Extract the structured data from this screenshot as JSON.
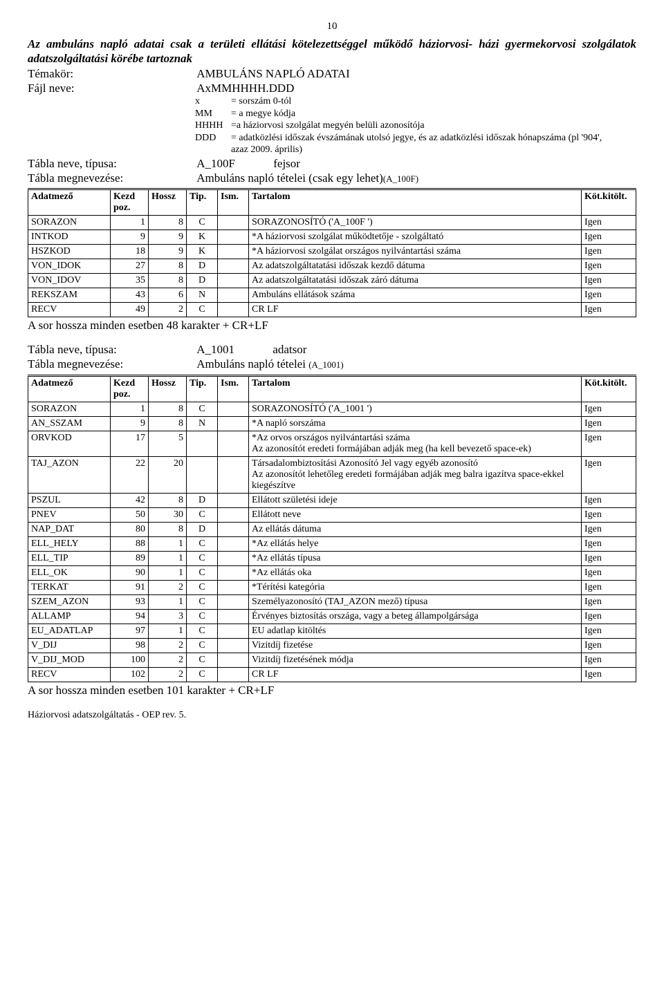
{
  "page_number": "10",
  "intro_heading": "Az ambuláns napló adatai csak a területi ellátási kötelezettséggel működő háziorvosi- házi gyermekorvosi szolgálatok adatszolgáltatási körébe tartoznak",
  "topic_label": "Témakör:",
  "topic_value": "AMBULÁNS NAPLÓ ADATAI",
  "file_label": "Fájl neve:",
  "file_value": "AxMMHHHH.DDD",
  "defs": [
    {
      "k": "x",
      "v": "= sorszám 0-tól"
    },
    {
      "k": "MM",
      "v": "= a megye kódja"
    },
    {
      "k": "HHHH",
      "v": "=a háziorvosi szolgálat megyén belüli azonosítója"
    },
    {
      "k": "DDD",
      "v": "= adatközlési időszak évszámának utolsó jegye, és az adatközlési időszak hónapszáma (pl '904', azaz 2009. április)"
    }
  ],
  "table1": {
    "name_label": "Tábla neve, típusa:",
    "name_value": "A_100F",
    "name_role": "fejsor",
    "desc_label": "Tábla megnevezése:",
    "desc_value": "Ambuláns napló tételei (csak egy lehet)",
    "desc_suffix": "(A_100F)",
    "columns": [
      "Adatmező",
      "Kezd poz.",
      "Hossz",
      "Tip.",
      "Ism.",
      "Tartalom",
      "Köt.kitölt."
    ],
    "rows": [
      [
        "SORAZON",
        "1",
        "8",
        "C",
        "",
        "SORAZONOSÍTÓ ('A_100F  ')",
        "Igen"
      ],
      [
        "INTKOD",
        "9",
        "9",
        "K",
        "",
        "*A háziorvosi szolgálat működtetője - szolgáltató",
        "Igen"
      ],
      [
        "HSZKOD",
        "18",
        "9",
        "K",
        "",
        "*A háziorvosi szolgálat országos nyilvántartási száma",
        "Igen"
      ],
      [
        "VON_IDOK",
        "27",
        "8",
        "D",
        "",
        "Az adatszolgáltatatási időszak kezdő dátuma",
        "Igen"
      ],
      [
        "VON_IDOV",
        "35",
        "8",
        "D",
        "",
        "Az adatszolgáltatatási időszak záró dátuma",
        "Igen"
      ],
      [
        "REKSZAM",
        "43",
        "6",
        "N",
        "",
        "Ambuláns ellátások száma",
        "Igen"
      ],
      [
        "RECV",
        "49",
        "2",
        "C",
        "",
        "CR LF",
        "Igen"
      ]
    ],
    "sum": "A sor hossza minden esetben 48 karakter + CR+LF"
  },
  "table2": {
    "name_label": "Tábla neve, típusa:",
    "name_value": "A_1001",
    "name_role": "adatsor",
    "desc_label": "Tábla megnevezése:",
    "desc_value": "Ambuláns napló tételei ",
    "desc_suffix": "(A_1001)",
    "columns": [
      "Adatmező",
      "Kezd poz.",
      "Hossz",
      "Tip.",
      "Ism.",
      "Tartalom",
      "Köt.kitölt."
    ],
    "rows": [
      [
        "SORAZON",
        "1",
        "8",
        "C",
        "",
        "SORAZONOSÍTÓ ('A_1001  ')",
        "Igen"
      ],
      [
        "AN_SSZAM",
        "9",
        "8",
        "N",
        "",
        "*A napló sorszáma",
        "Igen"
      ],
      [
        "ORVKOD",
        "17",
        "5",
        "",
        "",
        "*Az orvos országos nyilvántartási száma\nAz azonosítót eredeti formájában adják meg (ha kell bevezető space-ek)",
        "Igen"
      ],
      [
        "TAJ_AZON",
        "22",
        "20",
        "",
        "",
        "Társadalombiztosítási Azonosító Jel vagy egyéb azonosító\nAz azonosítót lehetőleg eredeti formájában adják meg balra igazítva space-ekkel kiegészítve",
        "Igen"
      ],
      [
        "PSZUL",
        "42",
        "8",
        "D",
        "",
        "Ellátott születési ideje",
        "Igen"
      ],
      [
        "PNEV",
        "50",
        "30",
        "C",
        "",
        "Ellátott neve",
        "Igen"
      ],
      [
        "NAP_DAT",
        "80",
        "8",
        "D",
        "",
        "Az ellátás dátuma",
        "Igen"
      ],
      [
        "ELL_HELY",
        "88",
        "1",
        "C",
        "",
        "*Az ellátás helye",
        "Igen"
      ],
      [
        "ELL_TIP",
        "89",
        "1",
        "C",
        "",
        "*Az ellátás típusa",
        "Igen"
      ],
      [
        "ELL_OK",
        "90",
        "1",
        "C",
        "",
        "*Az ellátás oka",
        "Igen"
      ],
      [
        "TERKAT",
        "91",
        "2",
        "C",
        "",
        "*Térítési kategória",
        "Igen"
      ],
      [
        "SZEM_AZON",
        "93",
        "1",
        "C",
        "",
        "Személyazonosító (TAJ_AZON mező) típusa",
        "Igen"
      ],
      [
        "ALLAMP",
        "94",
        "3",
        "C",
        "",
        "Érvényes biztosítás országa, vagy a beteg állampolgársága",
        "Igen"
      ],
      [
        "EU_ADATLAP",
        "97",
        "1",
        "C",
        "",
        "EU adatlap kitöltés",
        "Igen"
      ],
      [
        "V_DIJ",
        "98",
        "2",
        "C",
        "",
        "Vizitdíj fizetése",
        "Igen"
      ],
      [
        "V_DIJ_MOD",
        "100",
        "2",
        "C",
        "",
        "Vizitdíj fizetésének módja",
        "Igen"
      ],
      [
        "RECV",
        "102",
        "2",
        "C",
        "",
        "CR LF",
        "Igen"
      ]
    ],
    "sum": "A sor hossza minden esetben 101 karakter + CR+LF"
  },
  "footer": "Háziorvosi adatszolgáltatás - OEP rev. 5."
}
